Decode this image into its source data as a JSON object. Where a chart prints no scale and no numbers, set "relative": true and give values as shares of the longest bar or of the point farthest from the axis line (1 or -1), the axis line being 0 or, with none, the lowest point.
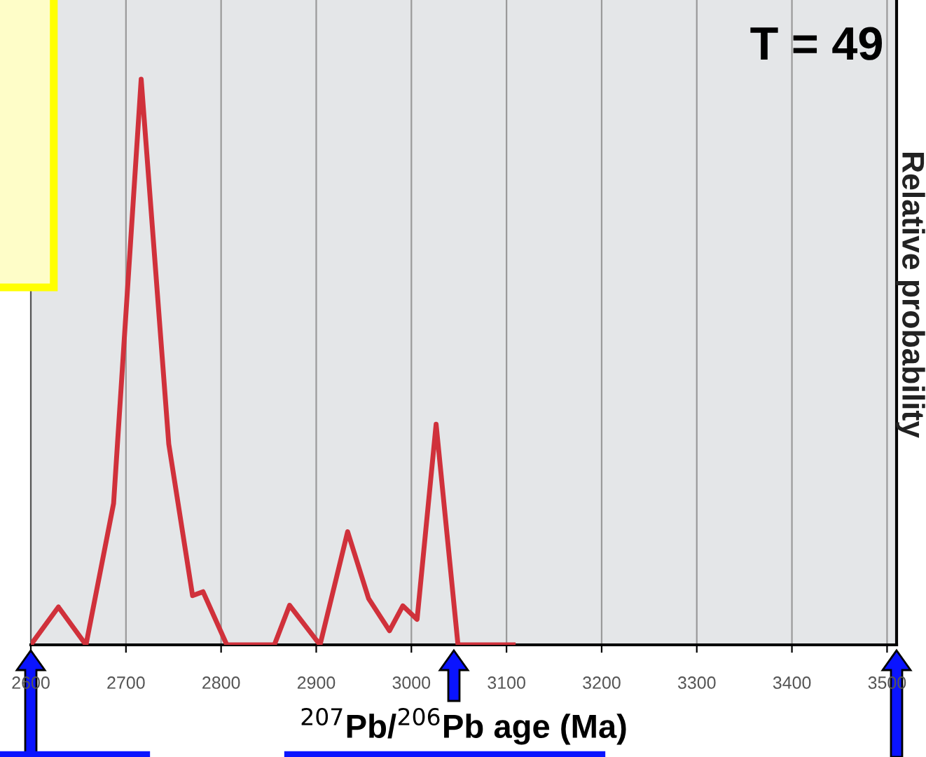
{
  "chart_data": {
    "type": "line",
    "relative": true,
    "xlabel": "$^{207}$Pb/$^{206}$Pb age (Ma)",
    "ylabel": "Relative probability",
    "x": [
      2600,
      2629,
      2658,
      2687,
      2716,
      2745,
      2770,
      2781,
      2806,
      2856,
      2872,
      2904,
      2933,
      2955,
      2977,
      2991,
      3006,
      3026,
      3049,
      3107
    ],
    "series": [
      {
        "color": "#d0313b",
        "values": [
          0,
          0.067,
          0,
          0.25,
          1.0,
          0.355,
          0.087,
          0.094,
          0,
          0,
          0.07,
          0,
          0.2,
          0.082,
          0.025,
          0.069,
          0.045,
          0.39,
          0,
          0
        ]
      }
    ],
    "xlim": [
      2600,
      3510
    ],
    "xticks": [
      2600,
      2700,
      2800,
      2900,
      3000,
      3100,
      3200,
      3300,
      3400,
      3500
    ],
    "grid": "x",
    "annotations": [
      "T = 49"
    ]
  }
}
